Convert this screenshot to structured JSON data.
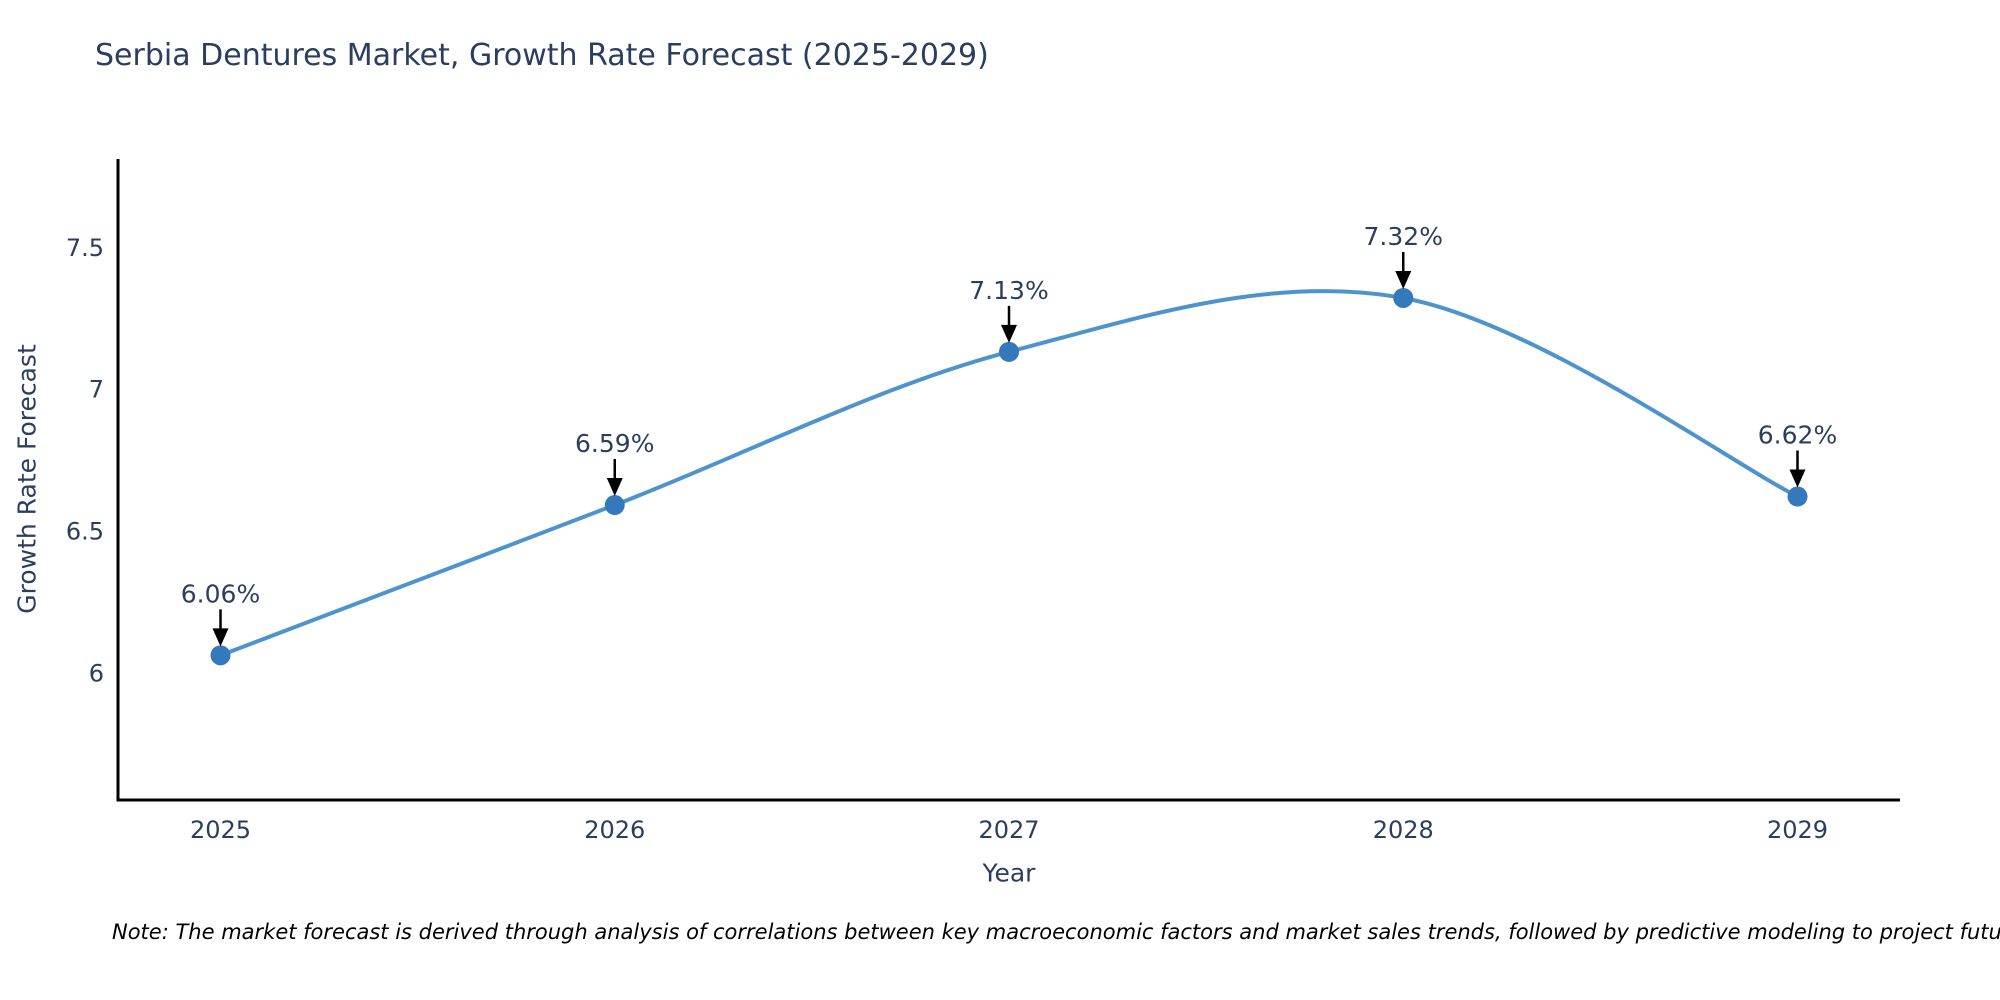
{
  "title": "Serbia Dentures Market, Growth Rate Forecast (2025-2029)",
  "note": "Note: The market forecast is derived through analysis of correlations between key macroeconomic factors and market sales trends, followed by predictive modeling to project future sales",
  "colors": {
    "background": "#ffffff",
    "text": "#2a3f5f",
    "axis_line": "#000000",
    "series_line": "#4e94cc",
    "marker_fill": "#3579bd",
    "arrow": "#000000",
    "note_text": "#000000"
  },
  "chart_data": {
    "type": "line",
    "line_shape": "spline",
    "title": "Serbia Dentures Market, Growth Rate Forecast (2025-2029)",
    "xlabel": "Year",
    "ylabel": "Growth Rate Forecast",
    "x": [
      2025,
      2026,
      2027,
      2028,
      2029
    ],
    "values": [
      6.06,
      6.59,
      7.13,
      7.32,
      6.62
    ],
    "point_labels": [
      "6.06%",
      "6.59%",
      "7.13%",
      "7.32%",
      "6.62%"
    ],
    "xticks": [
      2025,
      2026,
      2027,
      2028,
      2029
    ],
    "yticks": [
      6,
      6.5,
      7,
      7.5
    ],
    "xlim": [
      2024.74,
      2029.26
    ],
    "ylim": [
      5.55,
      7.81
    ],
    "grid": false,
    "legend": "none",
    "marker": "circle",
    "annotation_arrows": true
  }
}
